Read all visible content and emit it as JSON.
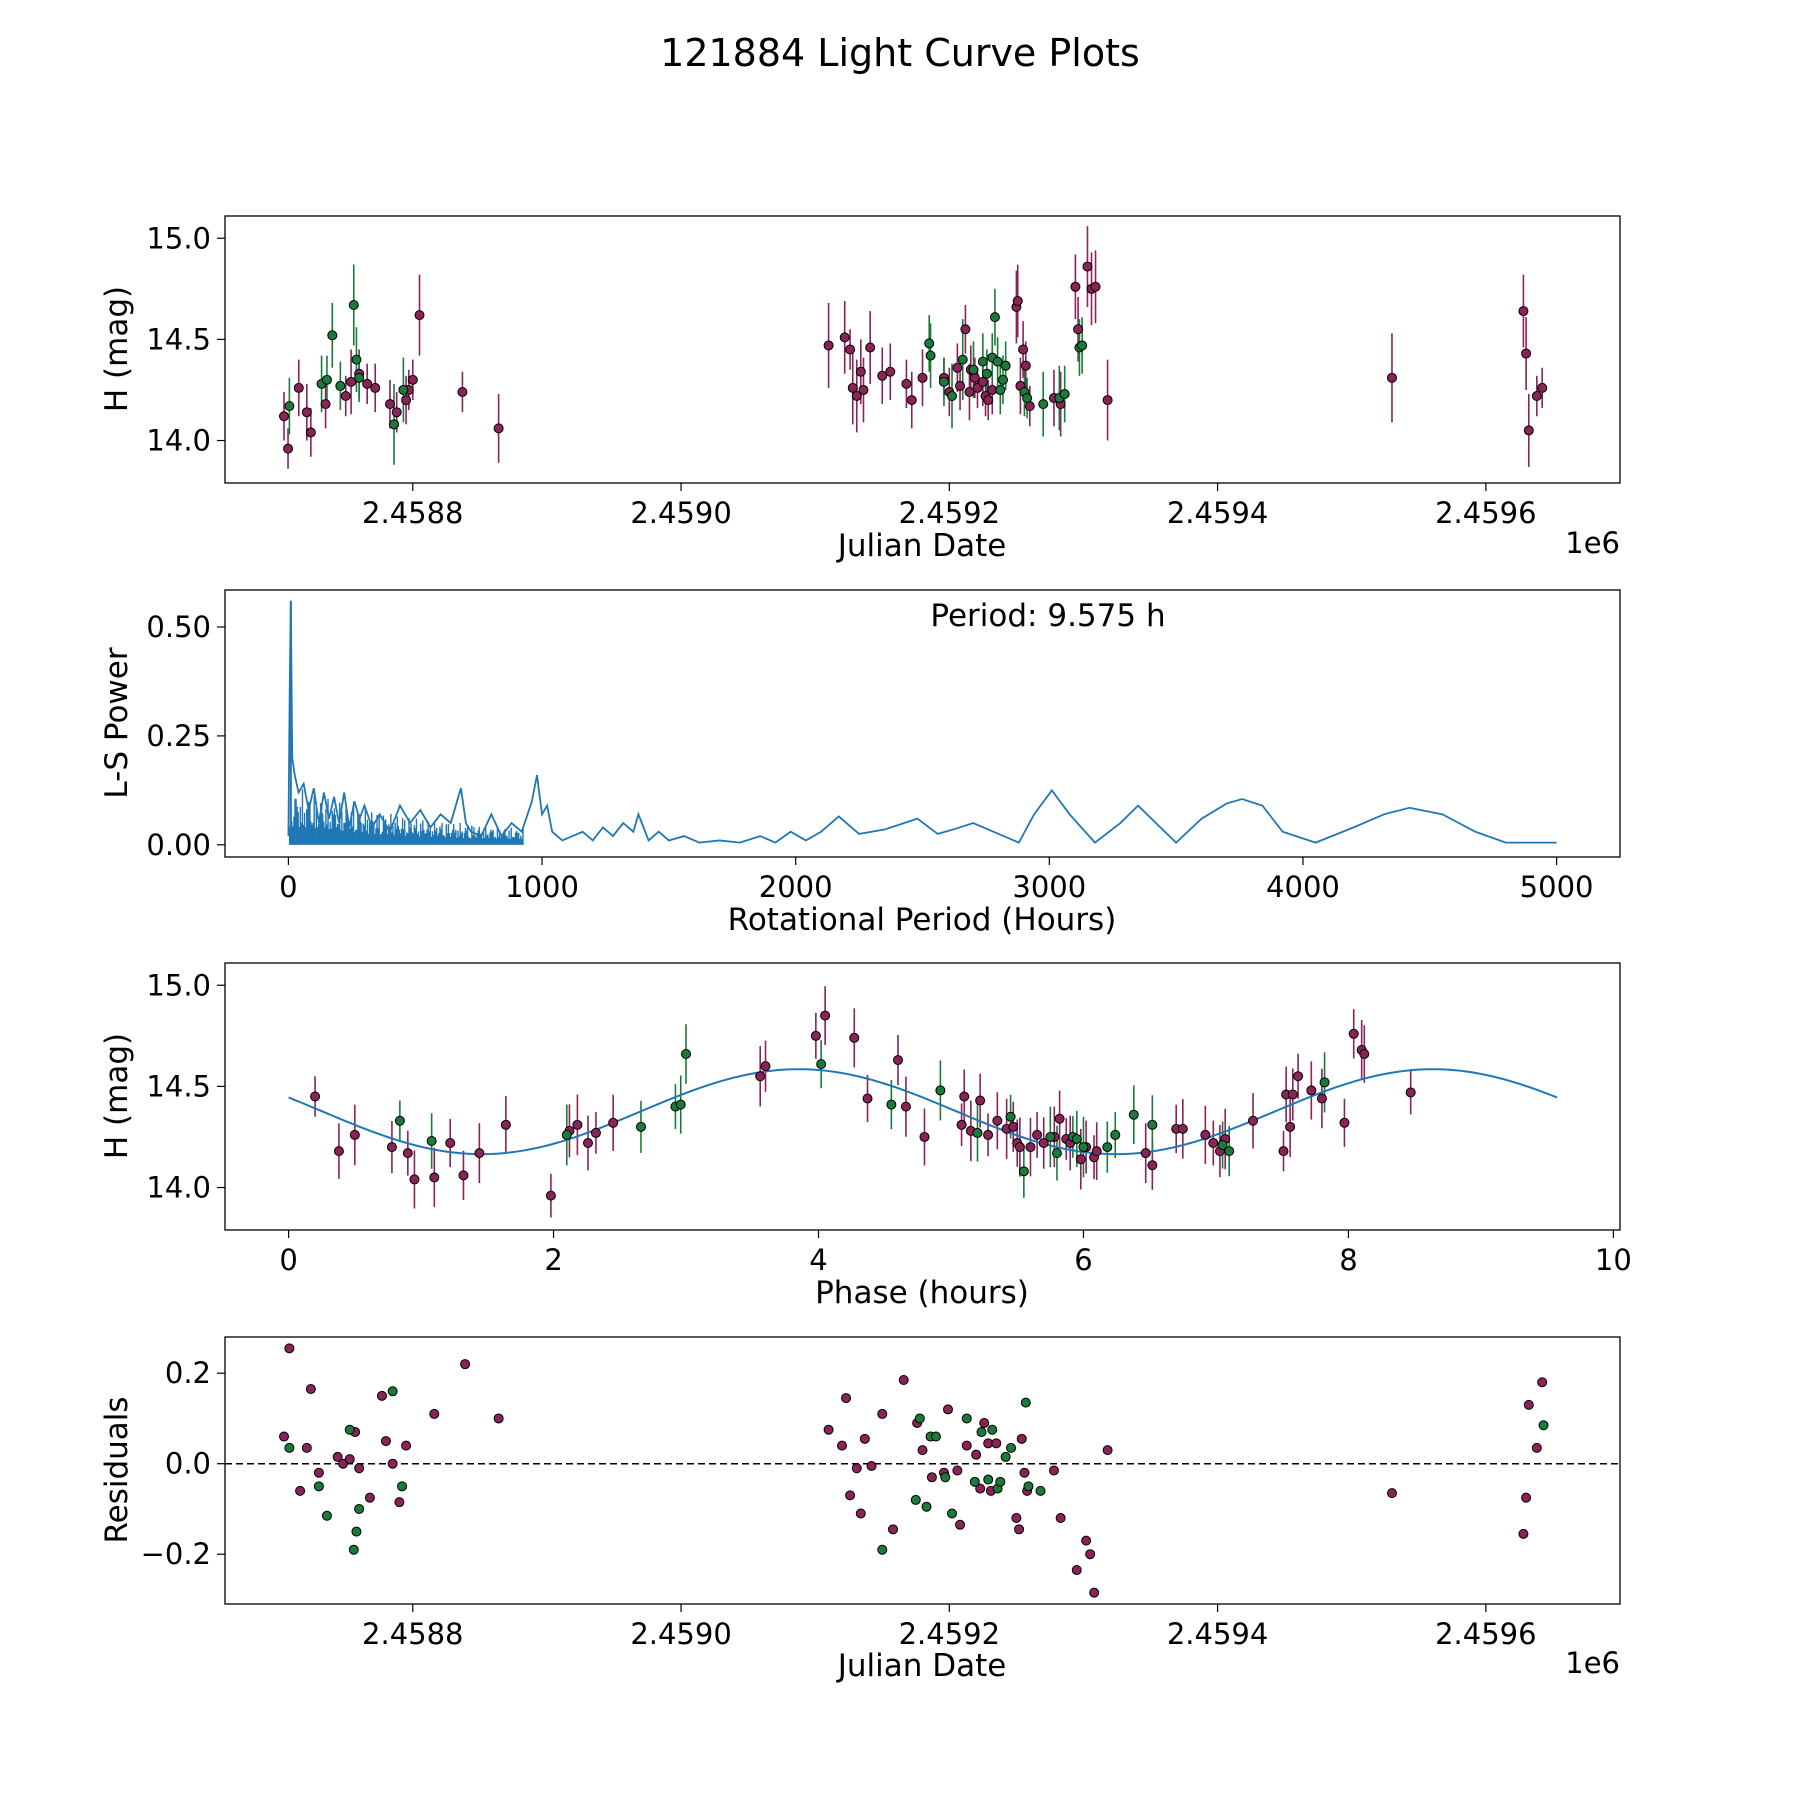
{
  "figure": {
    "title": "121884 Light Curve Plots"
  },
  "colors": {
    "maroon": "#8a2357",
    "green": "#1a7a3a",
    "blue": "#1f77b4",
    "edge": "#000000"
  },
  "chart_data": [
    {
      "id": "lightcurve",
      "type": "scatter",
      "xlabel": "Julian Date",
      "ylabel": "H (mag)",
      "x_offset_label": "1e6",
      "xlim": [
        2.45866,
        2.4597
      ],
      "ylim": [
        13.79,
        15.11
      ],
      "xticks": [
        2.4588,
        2.459,
        2.4592,
        2.4594,
        2.4596
      ],
      "xtick_labels": [
        "2.4588",
        "2.4590",
        "2.4592",
        "2.4594",
        "2.4596"
      ],
      "yticks": [
        14.0,
        14.5,
        15.0
      ],
      "ytick_labels": [
        "14.0",
        "14.5",
        "15.0"
      ],
      "series": [
        {
          "name": "maroon",
          "color": "maroon",
          "x": [
            2.458704,
            2.458707,
            2.458715,
            2.458721,
            2.458724,
            2.458735,
            2.45875,
            2.458754,
            2.45876,
            2.458766,
            2.458772,
            2.458783,
            2.458788,
            2.458795,
            2.458797,
            2.4588,
            2.458805,
            2.458837,
            2.458864,
            2.45911,
            2.459122,
            2.459126,
            2.459128,
            2.459131,
            2.459134,
            2.459136,
            2.459141,
            2.45915,
            2.459156,
            2.459168,
            2.459172,
            2.45918,
            2.459196,
            2.4592,
            2.459206,
            2.459208,
            2.459212,
            2.459215,
            2.459216,
            2.459219,
            2.459221,
            2.459225,
            2.459227,
            2.459229,
            2.459232,
            2.45925,
            2.459251,
            2.459253,
            2.459255,
            2.459257,
            2.45926,
            2.459278,
            2.459283,
            2.459294,
            2.459296,
            2.459303,
            2.459306,
            2.459309,
            2.459318,
            2.45953,
            2.459628,
            2.45963,
            2.459632,
            2.459638,
            2.459642
          ],
          "y": [
            14.12,
            13.96,
            14.26,
            14.14,
            14.04,
            14.18,
            14.22,
            14.29,
            14.33,
            14.28,
            14.26,
            14.18,
            14.14,
            14.2,
            14.25,
            14.3,
            14.62,
            14.24,
            14.06,
            14.47,
            14.51,
            14.45,
            14.26,
            14.22,
            14.34,
            14.25,
            14.46,
            14.32,
            14.34,
            14.28,
            14.2,
            14.31,
            14.31,
            14.24,
            14.36,
            14.27,
            14.55,
            14.24,
            14.35,
            14.31,
            14.26,
            14.29,
            14.22,
            14.2,
            14.25,
            14.66,
            14.69,
            14.27,
            14.45,
            14.37,
            14.17,
            14.21,
            14.18,
            14.76,
            14.55,
            14.86,
            14.75,
            14.76,
            14.2,
            14.31,
            14.64,
            14.43,
            14.05,
            14.22,
            14.26
          ],
          "yerr": [
            0.12,
            0.1,
            0.14,
            0.14,
            0.12,
            0.12,
            0.1,
            0.16,
            0.12,
            0.1,
            0.12,
            0.12,
            0.1,
            0.12,
            0.1,
            0.1,
            0.2,
            0.1,
            0.17,
            0.21,
            0.18,
            0.1,
            0.18,
            0.18,
            0.16,
            0.16,
            0.18,
            0.14,
            0.14,
            0.12,
            0.14,
            0.14,
            0.1,
            0.12,
            0.12,
            0.12,
            0.12,
            0.14,
            0.12,
            0.1,
            0.1,
            0.12,
            0.1,
            0.1,
            0.12,
            0.18,
            0.18,
            0.14,
            0.14,
            0.12,
            0.1,
            0.14,
            0.16,
            0.16,
            0.16,
            0.2,
            0.18,
            0.18,
            0.2,
            0.22,
            0.18,
            0.18,
            0.18,
            0.1,
            0.1
          ]
        },
        {
          "name": "green",
          "color": "green",
          "x": [
            2.458708,
            2.458732,
            2.458736,
            2.45874,
            2.458746,
            2.458756,
            2.458758,
            2.45876,
            2.458786,
            2.458793,
            2.459185,
            2.459186,
            2.459196,
            2.459202,
            2.45921,
            2.459218,
            2.459225,
            2.459228,
            2.459232,
            2.459234,
            2.459236,
            2.459238,
            2.45924,
            2.459242,
            2.459256,
            2.459258,
            2.45927,
            2.459282,
            2.459286,
            2.459297,
            2.459299
          ],
          "y": [
            14.17,
            14.28,
            14.3,
            14.52,
            14.27,
            14.67,
            14.4,
            14.31,
            14.08,
            14.25,
            14.48,
            14.42,
            14.29,
            14.22,
            14.4,
            14.35,
            14.39,
            14.33,
            14.41,
            14.61,
            14.39,
            14.25,
            14.3,
            14.37,
            14.24,
            14.21,
            14.18,
            14.21,
            14.23,
            14.46,
            14.47
          ],
          "yerr": [
            0.14,
            0.14,
            0.12,
            0.16,
            0.12,
            0.2,
            0.16,
            0.12,
            0.2,
            0.16,
            0.14,
            0.16,
            0.12,
            0.16,
            0.2,
            0.14,
            0.14,
            0.12,
            0.12,
            0.14,
            0.12,
            0.12,
            0.12,
            0.12,
            0.12,
            0.1,
            0.16,
            0.16,
            0.14,
            0.14,
            0.14
          ]
        }
      ]
    },
    {
      "id": "periodogram",
      "type": "line",
      "xlabel": "Rotational Period (Hours)",
      "ylabel": "L-S Power",
      "annotation": "Period: 9.575 h",
      "xlim": [
        -250,
        5250
      ],
      "ylim": [
        -0.028,
        0.585
      ],
      "xticks": [
        0,
        1000,
        2000,
        3000,
        4000,
        5000
      ],
      "xtick_labels": [
        "0",
        "1000",
        "2000",
        "3000",
        "4000",
        "5000"
      ],
      "yticks": [
        0.0,
        0.25,
        0.5
      ],
      "ytick_labels": [
        "0.00",
        "0.25",
        "0.50"
      ],
      "color": "blue",
      "peak": {
        "x": 9.575,
        "y": 0.56
      },
      "x": [
        0,
        5,
        9.575,
        15,
        25,
        40,
        60,
        80,
        100,
        120,
        140,
        160,
        180,
        200,
        220,
        240,
        260,
        280,
        300,
        330,
        360,
        400,
        440,
        480,
        520,
        560,
        600,
        640,
        680,
        700,
        720,
        760,
        800,
        840,
        880,
        920,
        960,
        980,
        1000,
        1020,
        1040,
        1080,
        1120,
        1160,
        1200,
        1240,
        1280,
        1320,
        1360,
        1380,
        1420,
        1460,
        1500,
        1560,
        1620,
        1700,
        1780,
        1860,
        1920,
        1980,
        2040,
        2100,
        2170,
        2250,
        2350,
        2480,
        2560,
        2620,
        2700,
        2800,
        2880,
        2940,
        3010,
        3080,
        3180,
        3280,
        3350,
        3420,
        3500,
        3600,
        3700,
        3760,
        3840,
        3920,
        4050,
        4200,
        4320,
        4420,
        4550,
        4680,
        4800,
        4900,
        5000
      ],
      "y": [
        0.02,
        0.35,
        0.56,
        0.2,
        0.16,
        0.12,
        0.14,
        0.08,
        0.13,
        0.05,
        0.12,
        0.06,
        0.11,
        0.05,
        0.12,
        0.04,
        0.1,
        0.06,
        0.09,
        0.04,
        0.07,
        0.03,
        0.09,
        0.05,
        0.08,
        0.04,
        0.07,
        0.05,
        0.13,
        0.05,
        0.03,
        0.02,
        0.07,
        0.02,
        0.05,
        0.03,
        0.1,
        0.16,
        0.07,
        0.09,
        0.03,
        0.01,
        0.02,
        0.03,
        0.01,
        0.04,
        0.02,
        0.05,
        0.03,
        0.07,
        0.01,
        0.03,
        0.01,
        0.02,
        0.005,
        0.01,
        0.005,
        0.02,
        0.005,
        0.03,
        0.01,
        0.03,
        0.065,
        0.025,
        0.035,
        0.06,
        0.025,
        0.035,
        0.05,
        0.025,
        0.005,
        0.07,
        0.125,
        0.07,
        0.005,
        0.05,
        0.09,
        0.05,
        0.005,
        0.06,
        0.095,
        0.105,
        0.09,
        0.03,
        0.005,
        0.04,
        0.07,
        0.085,
        0.07,
        0.03,
        0.005,
        0.005,
        0.005
      ]
    },
    {
      "id": "phased",
      "type": "scatter",
      "xlabel": "Phase (hours)",
      "ylabel": "H (mag)",
      "xlim": [
        -0.48,
        10.05
      ],
      "ylim": [
        13.79,
        15.11
      ],
      "xticks": [
        0,
        2,
        4,
        6,
        8,
        10
      ],
      "xtick_labels": [
        "0",
        "2",
        "4",
        "6",
        "8",
        "10"
      ],
      "yticks": [
        14.0,
        14.5,
        15.0
      ],
      "ytick_labels": [
        "14.0",
        "14.5",
        "15.0"
      ],
      "model": {
        "type": "sinusoid",
        "mean": 14.375,
        "amplitude": 0.21,
        "period": 4.7875,
        "peak_phase": 3.85,
        "x_range": [
          0,
          9.575
        ]
      },
      "series": [
        {
          "name": "maroon",
          "color": "maroon",
          "x": [
            0.2,
            0.38,
            0.5,
            0.78,
            0.9,
            0.95,
            1.1,
            1.22,
            1.32,
            1.44,
            1.64,
            1.98,
            2.12,
            2.18,
            2.26,
            2.32,
            2.45,
            3.56,
            3.6,
            3.98,
            4.05,
            4.27,
            4.37,
            4.6,
            4.66,
            4.8,
            5.08,
            5.1,
            5.15,
            5.22,
            5.28,
            5.35,
            5.42,
            5.47,
            5.5,
            5.52,
            5.6,
            5.65,
            5.7,
            5.78,
            5.82,
            5.87,
            5.9,
            5.98,
            6.02,
            6.08,
            6.1,
            6.47,
            6.52,
            6.7,
            6.75,
            6.92,
            6.98,
            7.03,
            7.07,
            7.28,
            7.51,
            7.53,
            7.56,
            7.58,
            7.62,
            7.72,
            7.8,
            7.97,
            8.04,
            8.1,
            8.12,
            8.47
          ],
          "y": [
            14.45,
            14.18,
            14.26,
            14.2,
            14.17,
            14.04,
            14.05,
            14.22,
            14.06,
            14.17,
            14.31,
            13.96,
            14.28,
            14.31,
            14.22,
            14.27,
            14.32,
            14.55,
            14.6,
            14.75,
            14.85,
            14.74,
            14.44,
            14.63,
            14.4,
            14.25,
            14.31,
            14.45,
            14.28,
            14.43,
            14.26,
            14.33,
            14.29,
            14.3,
            14.22,
            14.2,
            14.2,
            14.26,
            14.22,
            14.25,
            14.34,
            14.24,
            14.22,
            14.14,
            14.2,
            14.15,
            14.18,
            14.17,
            14.11,
            14.29,
            14.29,
            14.26,
            14.22,
            14.18,
            14.24,
            14.33,
            14.18,
            14.46,
            14.3,
            14.46,
            14.55,
            14.48,
            14.44,
            14.32,
            14.76,
            14.68,
            14.66,
            14.47
          ]
        },
        {
          "name": "green",
          "color": "green",
          "x": [
            0.84,
            1.08,
            2.1,
            2.66,
            2.92,
            2.96,
            3.0,
            4.02,
            4.55,
            4.92,
            5.2,
            5.45,
            5.55,
            5.75,
            5.8,
            5.92,
            5.95,
            6.0,
            6.18,
            6.24,
            6.38,
            6.52,
            7.05,
            7.1,
            7.82
          ],
          "y": [
            14.33,
            14.23,
            14.26,
            14.3,
            14.4,
            14.41,
            14.66,
            14.61,
            14.41,
            14.48,
            14.27,
            14.35,
            14.08,
            14.25,
            14.17,
            14.25,
            14.24,
            14.2,
            14.2,
            14.26,
            14.36,
            14.31,
            14.21,
            14.18,
            14.52
          ]
        }
      ]
    },
    {
      "id": "residuals",
      "type": "scatter",
      "xlabel": "Julian Date",
      "ylabel": "Residuals",
      "x_offset_label": "1e6",
      "xlim": [
        2.45866,
        2.4597
      ],
      "ylim": [
        -0.31,
        0.28
      ],
      "xticks": [
        2.4588,
        2.459,
        2.4592,
        2.4594,
        2.4596
      ],
      "xtick_labels": [
        "2.4588",
        "2.4590",
        "2.4592",
        "2.4594",
        "2.4596"
      ],
      "yticks": [
        -0.2,
        0.0,
        0.2
      ],
      "ytick_labels": [
        "−0.2",
        "0.0",
        "0.2"
      ],
      "reference_line": 0.0,
      "series": [
        {
          "name": "maroon",
          "color": "maroon",
          "x": [
            2.458704,
            2.458708,
            2.458716,
            2.458721,
            2.458724,
            2.45873,
            2.458744,
            2.458748,
            2.458753,
            2.458757,
            2.45876,
            2.458768,
            2.458777,
            2.45878,
            2.458785,
            2.45879,
            2.458795,
            2.458816,
            2.458839,
            2.458864,
            2.45911,
            2.45912,
            2.459123,
            2.459126,
            2.459131,
            2.459134,
            2.459137,
            2.459142,
            2.45915,
            2.459158,
            2.459166,
            2.459176,
            2.45918,
            2.459187,
            2.459196,
            2.459199,
            2.459206,
            2.459208,
            2.459213,
            2.45922,
            2.459223,
            2.459226,
            2.459229,
            2.459231,
            2.459235,
            2.45925,
            2.459252,
            2.459254,
            2.459256,
            2.459258,
            2.459278,
            2.459283,
            2.459295,
            2.459302,
            2.459305,
            2.459308,
            2.459318,
            2.45953,
            2.459628,
            2.45963,
            2.459632,
            2.459638,
            2.459642
          ],
          "y": [
            0.06,
            0.255,
            -0.06,
            0.035,
            0.165,
            -0.02,
            0.015,
            0.0,
            0.01,
            0.07,
            -0.01,
            -0.075,
            0.15,
            0.05,
            0.0,
            -0.085,
            0.04,
            0.11,
            0.22,
            0.1,
            0.075,
            0.04,
            0.145,
            -0.07,
            -0.01,
            -0.11,
            0.055,
            -0.005,
            0.11,
            -0.145,
            0.185,
            0.09,
            0.03,
            -0.03,
            -0.02,
            0.12,
            -0.015,
            -0.135,
            0.04,
            0.02,
            -0.055,
            0.09,
            0.045,
            -0.06,
            0.045,
            -0.12,
            -0.145,
            0.055,
            -0.02,
            -0.06,
            -0.015,
            -0.12,
            -0.235,
            -0.17,
            -0.2,
            -0.285,
            0.03,
            -0.065,
            -0.155,
            -0.075,
            0.13,
            0.035,
            0.18
          ]
        },
        {
          "name": "green",
          "color": "green",
          "x": [
            2.458708,
            2.45873,
            2.458736,
            2.458753,
            2.458756,
            2.458758,
            2.45876,
            2.458785,
            2.458792,
            2.45915,
            2.459175,
            2.459178,
            2.459183,
            2.459186,
            2.45919,
            2.459197,
            2.459202,
            2.459213,
            2.459219,
            2.459224,
            2.459229,
            2.459232,
            2.459236,
            2.459238,
            2.459242,
            2.459246,
            2.459257,
            2.459259,
            2.459268,
            2.459643
          ],
          "y": [
            0.035,
            -0.05,
            -0.115,
            0.075,
            -0.19,
            -0.15,
            -0.1,
            0.16,
            -0.05,
            -0.19,
            -0.08,
            0.1,
            -0.095,
            0.06,
            0.06,
            -0.03,
            -0.11,
            0.1,
            -0.04,
            0.07,
            -0.035,
            0.075,
            -0.055,
            -0.04,
            0.015,
            0.035,
            0.135,
            -0.05,
            -0.06,
            0.085
          ]
        }
      ]
    }
  ]
}
